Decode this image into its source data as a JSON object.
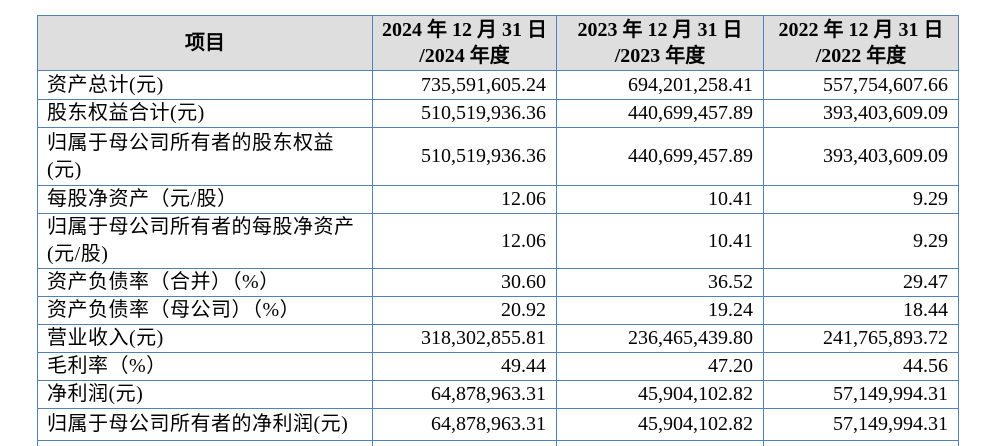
{
  "colors": {
    "table_border": "#4f81bd",
    "header_background": "#dedede",
    "text": "#000000"
  },
  "table": {
    "header": {
      "item_label": "项目",
      "columns": [
        "2024 年 12 月 31 日\n/2024 年度",
        "2023 年 12 月 31 日\n/2023 年度",
        "2022 年 12 月 31 日\n/2022 年度"
      ]
    },
    "rows": [
      {
        "label": "资产总计(元)",
        "values": [
          "735,591,605.24",
          "694,201,258.41",
          "557,754,607.66"
        ]
      },
      {
        "label": "股东权益合计(元)",
        "values": [
          "510,519,936.36",
          "440,699,457.89",
          "393,403,609.09"
        ]
      },
      {
        "label": "归属于母公司所有者的股东权益(元)",
        "values": [
          "510,519,936.36",
          "440,699,457.89",
          "393,403,609.09"
        ]
      },
      {
        "label": "每股净资产（元/股）",
        "values": [
          "12.06",
          "10.41",
          "9.29"
        ]
      },
      {
        "label": "归属于母公司所有者的每股净资产(元/股)",
        "values": [
          "12.06",
          "10.41",
          "9.29"
        ]
      },
      {
        "label": "资产负债率（合并）（%）",
        "values": [
          "30.60",
          "36.52",
          "29.47"
        ]
      },
      {
        "label": "资产负债率（母公司）（%）",
        "values": [
          "20.92",
          "19.24",
          "18.44"
        ]
      },
      {
        "label": "营业收入(元)",
        "values": [
          "318,302,855.81",
          "236,465,439.80",
          "241,765,893.72"
        ]
      },
      {
        "label": "毛利率（%）",
        "values": [
          "49.44",
          "47.20",
          "44.56"
        ]
      },
      {
        "label": "净利润(元)",
        "values": [
          "64,878,963.31",
          "45,904,102.82",
          "57,149,994.31"
        ]
      },
      {
        "label": "归属于母公司所有者的净利润(元)",
        "values": [
          "64,878,963.31",
          "45,904,102.82",
          "57,149,994.31"
        ]
      }
    ]
  }
}
